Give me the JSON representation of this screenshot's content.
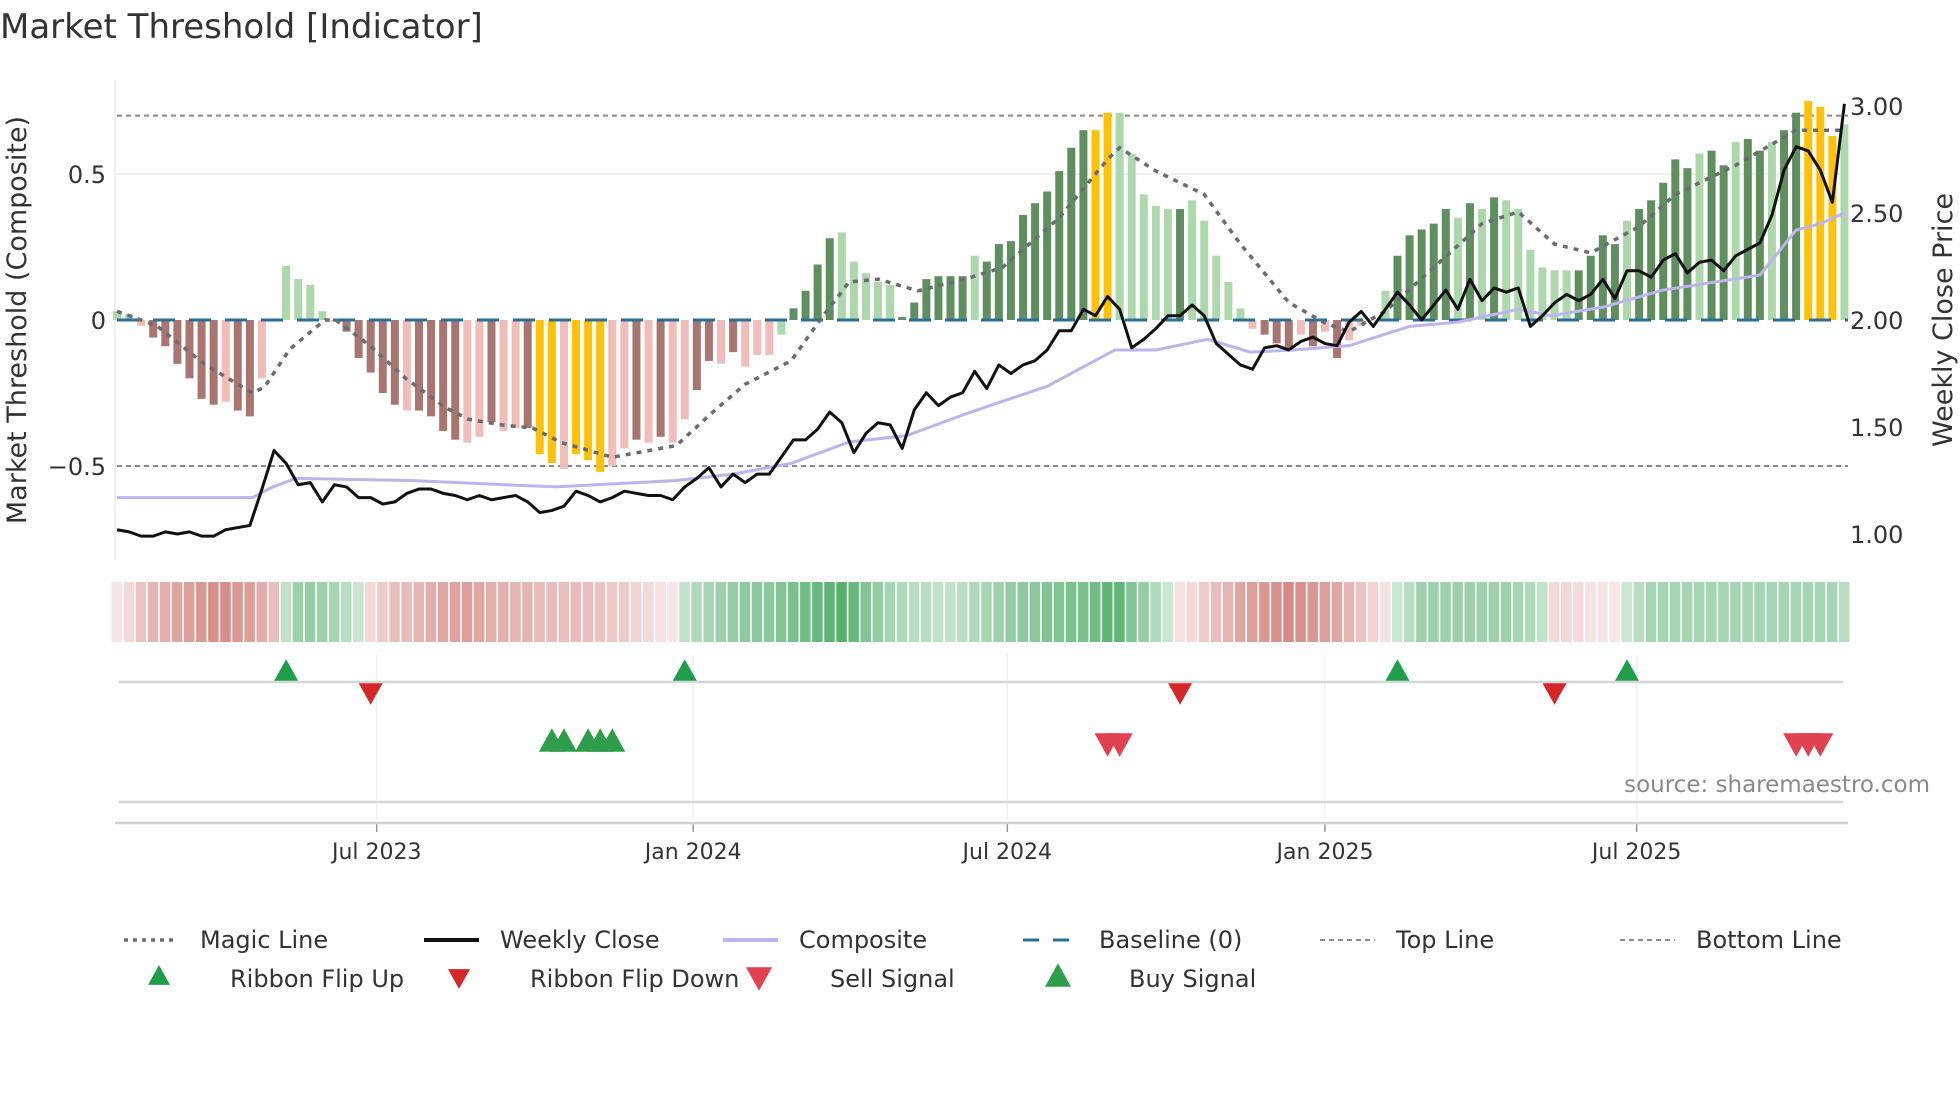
{
  "title": "Market Threshold [Indicator]",
  "source": "source: sharemaestro.com",
  "colors": {
    "bar_G": "#5f8f5f",
    "bar_g": "#acd8ac",
    "bar_R": "#a87570",
    "bar_r": "#f0bdb8",
    "bar_Y": "#ffc107",
    "price": "#111111",
    "composite": "#bdb4ee",
    "magic": "#6b6b72",
    "baseline": "#2a6f97",
    "threshold": "#8a8a8a",
    "ribbon_up": "#3aa457",
    "ribbon_down": "#c65c57",
    "flip_up": "#1e9e4a",
    "flip_down": "#d62728",
    "buy": "#2e9e4a",
    "sell": "#e2414f"
  },
  "chart_data": {
    "type": "bar+line",
    "title": "Market Threshold [Indicator]",
    "ylabel_left": "Market Threshold (Composite)",
    "ylabel_right": "Weekly Close Price",
    "left_ticks": [
      {
        "v": 0.5,
        "label": "0.5"
      },
      {
        "v": 0,
        "label": "0"
      },
      {
        "v": -0.5,
        "label": "−0.5"
      }
    ],
    "right_ticks": [
      {
        "v": 3.0,
        "label": "3.00"
      },
      {
        "v": 2.5,
        "label": "2.50"
      },
      {
        "v": 2.0,
        "label": "2.00"
      },
      {
        "v": 1.5,
        "label": "1.50"
      },
      {
        "v": 1.0,
        "label": "1.00"
      }
    ],
    "x_ticks": [
      {
        "week": 22.5,
        "label": "Jul 2023"
      },
      {
        "week": 48.7,
        "label": "Jan 2024"
      },
      {
        "week": 74.7,
        "label": "Jul 2024"
      },
      {
        "week": 101,
        "label": "Jan 2025"
      },
      {
        "week": 126.8,
        "label": "Jul 2025"
      }
    ],
    "top_line": 0.7,
    "bottom_line": -0.5,
    "baseline": 0,
    "weeks": 144,
    "bars": [
      0.03,
      0.02,
      -0.02,
      -0.06,
      -0.09,
      -0.15,
      -0.2,
      -0.27,
      -0.29,
      -0.28,
      -0.31,
      -0.33,
      -0.2,
      0,
      0.185,
      0.14,
      0.12,
      0.03,
      -0.005,
      -0.04,
      -0.13,
      -0.18,
      -0.25,
      -0.29,
      -0.31,
      -0.31,
      -0.33,
      -0.38,
      -0.41,
      -0.42,
      -0.4,
      -0.35,
      -0.38,
      -0.37,
      -0.37,
      -0.46,
      -0.49,
      -0.51,
      -0.46,
      -0.48,
      -0.52,
      -0.5,
      -0.44,
      -0.41,
      -0.42,
      -0.4,
      -0.42,
      -0.34,
      -0.24,
      -0.14,
      -0.15,
      -0.11,
      -0.16,
      -0.12,
      -0.12,
      -0.05,
      0.04,
      0.1,
      0.19,
      0.28,
      0.3,
      0.2,
      0.16,
      0.13,
      0.12,
      0.01,
      0.06,
      0.14,
      0.15,
      0.15,
      0.15,
      0.22,
      0.2,
      0.26,
      0.27,
      0.36,
      0.4,
      0.44,
      0.51,
      0.59,
      0.65,
      0.65,
      0.71,
      0.71,
      0.57,
      0.43,
      0.39,
      0.38,
      0.38,
      0.41,
      0.34,
      0.22,
      0.13,
      0.04,
      -0.03,
      -0.05,
      -0.08,
      -0.1,
      -0.05,
      -0.09,
      -0.04,
      -0.13,
      -0.07,
      -0.02,
      0,
      0.1,
      0.22,
      0.29,
      0.31,
      0.33,
      0.38,
      0.35,
      0.4,
      0.38,
      0.42,
      0.41,
      0.38,
      0.24,
      0.18,
      0.17,
      0.17,
      0.17,
      0.22,
      0.29,
      0.26,
      0.34,
      0.38,
      0.41,
      0.47,
      0.55,
      0.52,
      0.57,
      0.58,
      0.53,
      0.61,
      0.62,
      0.58,
      0.61,
      0.65,
      0.71,
      0.75,
      0.73,
      0.63,
      0.67
    ],
    "bar_kinds": "ggrRRRRRRrRRrgggggrRRRRRrRRRRrrRrrRYYrYYYrrRrRrrRRrRrrrgGGGGgggggGGGGGGgGGGGGGGGGYYgggggGgggggrRRRrRrRrrggGGGGGgGgGggggggGGGGgGGGGGgGGgGGgGGYYYgG",
    "bar_kind_legend": {
      "G": "strong up",
      "g": "weak up",
      "R": "strong down",
      "r": "weak down",
      "Y": "extreme"
    },
    "weekly_close": [
      1.02,
      1.01,
      0.99,
      0.99,
      1.01,
      1.0,
      1.01,
      0.99,
      0.99,
      1.02,
      1.03,
      1.04,
      1.21,
      1.39,
      1.33,
      1.23,
      1.24,
      1.15,
      1.23,
      1.22,
      1.17,
      1.17,
      1.14,
      1.15,
      1.19,
      1.21,
      1.21,
      1.19,
      1.18,
      1.16,
      1.18,
      1.16,
      1.17,
      1.18,
      1.15,
      1.1,
      1.11,
      1.13,
      1.2,
      1.18,
      1.15,
      1.17,
      1.2,
      1.19,
      1.18,
      1.18,
      1.16,
      1.22,
      1.26,
      1.31,
      1.22,
      1.28,
      1.24,
      1.28,
      1.28,
      1.36,
      1.44,
      1.44,
      1.49,
      1.57,
      1.52,
      1.38,
      1.47,
      1.52,
      1.51,
      1.4,
      1.58,
      1.66,
      1.6,
      1.64,
      1.66,
      1.76,
      1.68,
      1.79,
      1.75,
      1.79,
      1.81,
      1.86,
      1.95,
      1.95,
      2.05,
      2.02,
      2.11,
      2.05,
      1.87,
      1.91,
      1.96,
      2.02,
      2.02,
      2.07,
      2.02,
      1.89,
      1.84,
      1.79,
      1.77,
      1.87,
      1.88,
      1.86,
      1.9,
      1.92,
      1.89,
      1.88,
      1.99,
      2.04,
      1.97,
      2.05,
      2.13,
      2.07,
      2.0,
      2.07,
      2.14,
      2.05,
      2.19,
      2.09,
      2.15,
      2.13,
      2.15,
      1.97,
      2.02,
      2.08,
      2.12,
      2.09,
      2.12,
      2.19,
      2.1,
      2.23,
      2.23,
      2.2,
      2.28,
      2.31,
      2.22,
      2.27,
      2.28,
      2.23,
      2.3,
      2.33,
      2.36,
      2.49,
      2.7,
      2.81,
      2.79,
      2.7,
      2.55,
      3.01
    ],
    "composite": [
      [
        1,
        1.17
      ],
      [
        12.2,
        1.17
      ],
      [
        13.9,
        1.22
      ],
      [
        15.8,
        1.26
      ],
      [
        25.3,
        1.25
      ],
      [
        37.3,
        1.22
      ],
      [
        47.3,
        1.25
      ],
      [
        52,
        1.28
      ],
      [
        56.8,
        1.33
      ],
      [
        61.6,
        1.43
      ],
      [
        66.4,
        1.46
      ],
      [
        71.2,
        1.56
      ],
      [
        74.3,
        1.62
      ],
      [
        78,
        1.69
      ],
      [
        83.6,
        1.86
      ],
      [
        87,
        1.86
      ],
      [
        91.3,
        1.91
      ],
      [
        94.8,
        1.85
      ],
      [
        98.4,
        1.86
      ],
      [
        103,
        1.88
      ],
      [
        108,
        1.97
      ],
      [
        112,
        1.99
      ],
      [
        117,
        2.05
      ],
      [
        119.7,
        2.02
      ],
      [
        124,
        2.06
      ],
      [
        129,
        2.14
      ],
      [
        137,
        2.21
      ],
      [
        140,
        2.42
      ],
      [
        142,
        2.45
      ],
      [
        144,
        2.5
      ]
    ],
    "magic_line": [
      [
        1,
        0.03
      ],
      [
        4.3,
        -0.02
      ],
      [
        8.2,
        -0.15
      ],
      [
        12.2,
        -0.25
      ],
      [
        13.2,
        -0.23
      ],
      [
        15.3,
        -0.1
      ],
      [
        18.2,
        0
      ],
      [
        19.1,
        0
      ],
      [
        22,
        -0.09
      ],
      [
        24.9,
        -0.2
      ],
      [
        28.2,
        -0.3
      ],
      [
        30.1,
        -0.34
      ],
      [
        33,
        -0.36
      ],
      [
        35.4,
        -0.37
      ],
      [
        37.8,
        -0.42
      ],
      [
        42,
        -0.47
      ],
      [
        47.3,
        -0.43
      ],
      [
        50.2,
        -0.32
      ],
      [
        53,
        -0.22
      ],
      [
        56.8,
        -0.14
      ],
      [
        59.2,
        0
      ],
      [
        61.6,
        0.13
      ],
      [
        64,
        0.14
      ],
      [
        67.3,
        0.1
      ],
      [
        71.2,
        0.14
      ],
      [
        74.3,
        0.18
      ],
      [
        79,
        0.35
      ],
      [
        83,
        0.55
      ],
      [
        84,
        0.59
      ],
      [
        87,
        0.51
      ],
      [
        91,
        0.43
      ],
      [
        94,
        0.26
      ],
      [
        98,
        0.06
      ],
      [
        101,
        -0.01
      ],
      [
        103,
        -0.04
      ],
      [
        106,
        0.03
      ],
      [
        110,
        0.18
      ],
      [
        114,
        0.33
      ],
      [
        117,
        0.37
      ],
      [
        120,
        0.26
      ],
      [
        123,
        0.23
      ],
      [
        127,
        0.32
      ],
      [
        130,
        0.43
      ],
      [
        135,
        0.53
      ],
      [
        140,
        0.65
      ],
      [
        144,
        0.65
      ]
    ],
    "ribbon": [
      -0.12,
      -0.2,
      -0.35,
      -0.45,
      -0.5,
      -0.55,
      -0.6,
      -0.65,
      -0.7,
      -0.72,
      -0.65,
      -0.6,
      -0.5,
      -0.4,
      0.3,
      0.5,
      0.55,
      0.5,
      0.45,
      0.35,
      0.25,
      -0.2,
      -0.3,
      -0.38,
      -0.4,
      -0.45,
      -0.5,
      -0.55,
      -0.58,
      -0.6,
      -0.55,
      -0.5,
      -0.48,
      -0.45,
      -0.45,
      -0.42,
      -0.4,
      -0.38,
      -0.4,
      -0.38,
      -0.35,
      -0.32,
      -0.3,
      -0.25,
      -0.2,
      -0.15,
      -0.1,
      0.3,
      0.4,
      0.45,
      0.5,
      0.55,
      0.58,
      0.6,
      0.6,
      0.65,
      0.7,
      0.75,
      0.8,
      0.85,
      0.9,
      0.8,
      0.65,
      0.55,
      0.45,
      0.4,
      0.35,
      0.35,
      0.3,
      0.3,
      0.35,
      0.4,
      0.45,
      0.5,
      0.55,
      0.6,
      0.6,
      0.65,
      0.65,
      0.7,
      0.7,
      0.75,
      0.85,
      0.85,
      0.65,
      0.55,
      0.4,
      0.25,
      -0.15,
      -0.2,
      -0.3,
      -0.4,
      -0.45,
      -0.55,
      -0.6,
      -0.65,
      -0.7,
      -0.75,
      -0.7,
      -0.65,
      -0.6,
      -0.55,
      -0.45,
      -0.35,
      -0.25,
      -0.15,
      0.25,
      0.35,
      0.5,
      0.5,
      0.5,
      0.5,
      0.5,
      0.5,
      0.5,
      0.5,
      0.45,
      0.4,
      0.3,
      -0.2,
      -0.2,
      -0.18,
      -0.15,
      -0.12,
      -0.1,
      0.25,
      0.35,
      0.45,
      0.45,
      0.45,
      0.45,
      0.45,
      0.45,
      0.45,
      0.45,
      0.45,
      0.45,
      0.45,
      0.45,
      0.45,
      0.45,
      0.45,
      0.45,
      0.35
    ],
    "ribbon_flip_up": [
      15,
      48,
      107,
      126
    ],
    "ribbon_flip_down": [
      22,
      89,
      120
    ],
    "buy_signals": [
      37,
      38,
      40,
      41,
      42
    ],
    "sell_signals": [
      83,
      84,
      140,
      141,
      142
    ],
    "legend": {
      "placement": "bottom",
      "items": [
        {
          "key": "magic",
          "label": "Magic Line"
        },
        {
          "key": "price",
          "label": "Weekly Close"
        },
        {
          "key": "composite",
          "label": "Composite"
        },
        {
          "key": "baseline",
          "label": "Baseline (0)"
        },
        {
          "key": "top",
          "label": "Top Line"
        },
        {
          "key": "bottom",
          "label": "Bottom Line"
        },
        {
          "key": "flip_up",
          "label": "Ribbon Flip Up"
        },
        {
          "key": "flip_down",
          "label": "Ribbon Flip Down"
        },
        {
          "key": "sell",
          "label": "Sell Signal"
        },
        {
          "key": "buy",
          "label": "Buy Signal"
        }
      ]
    }
  }
}
